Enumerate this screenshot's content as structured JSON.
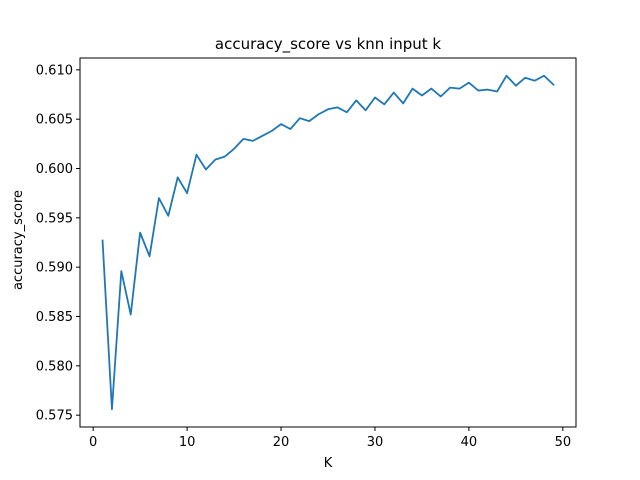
{
  "chart_data": {
    "type": "line",
    "title": "accuracy_score vs knn input k",
    "xlabel": "K",
    "ylabel": "accuracy_score",
    "xlim": [
      -1.4,
      51.4
    ],
    "ylim": [
      0.5738,
      0.6112
    ],
    "xticks": [
      0,
      10,
      20,
      30,
      40,
      50
    ],
    "xtick_labels": [
      "0",
      "10",
      "20",
      "30",
      "40",
      "50"
    ],
    "yticks": [
      0.575,
      0.58,
      0.585,
      0.59,
      0.595,
      0.6,
      0.605,
      0.61
    ],
    "ytick_labels": [
      "0.575",
      "0.580",
      "0.585",
      "0.590",
      "0.595",
      "0.600",
      "0.605",
      "0.610"
    ],
    "grid": false,
    "line_color": "#1f77b4",
    "series": [
      {
        "x": [
          1,
          2,
          3,
          4,
          5,
          6,
          7,
          8,
          9,
          10,
          11,
          12,
          13,
          14,
          15,
          16,
          17,
          18,
          19,
          20,
          21,
          22,
          23,
          24,
          25,
          26,
          27,
          28,
          29,
          30,
          31,
          32,
          33,
          34,
          35,
          36,
          37,
          38,
          39,
          40,
          41,
          42,
          43,
          44,
          45,
          46,
          47,
          48,
          49
        ],
        "values": [
          0.5927,
          0.5756,
          0.5896,
          0.5852,
          0.5935,
          0.5911,
          0.597,
          0.5952,
          0.5991,
          0.5975,
          0.6014,
          0.5999,
          0.6009,
          0.6012,
          0.602,
          0.603,
          0.6028,
          0.6033,
          0.6038,
          0.6045,
          0.604,
          0.6051,
          0.6048,
          0.6055,
          0.606,
          0.6062,
          0.6057,
          0.6069,
          0.6059,
          0.6072,
          0.6065,
          0.6077,
          0.6066,
          0.6081,
          0.6074,
          0.6081,
          0.6073,
          0.6082,
          0.6081,
          0.6087,
          0.6079,
          0.608,
          0.6078,
          0.6094,
          0.6084,
          0.6092,
          0.6089,
          0.6094,
          0.6085
        ]
      }
    ]
  }
}
